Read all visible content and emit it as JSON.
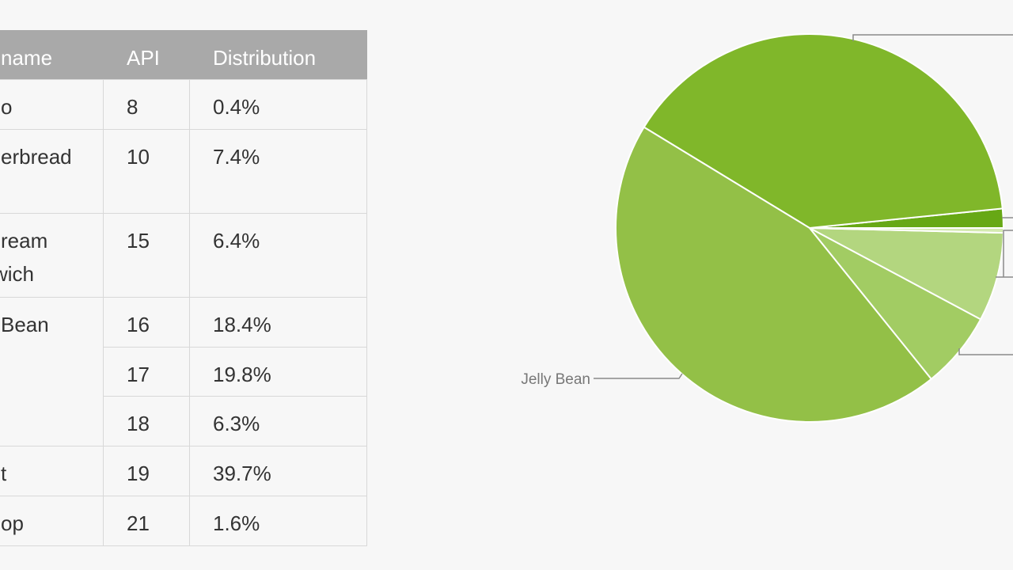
{
  "table": {
    "header": [
      "name",
      "API",
      "Distribution"
    ],
    "rows": [
      [
        "o",
        "8",
        "0.4%"
      ],
      [
        "erbread",
        "10",
        "7.4%"
      ],
      [
        "ream\nwich",
        "15",
        "6.4%"
      ],
      [
        "Bean",
        "16",
        "18.4%"
      ],
      [
        "17",
        "19.8%"
      ],
      [
        "18",
        "6.3%"
      ],
      [
        "t",
        "19",
        "39.7%"
      ],
      [
        "op",
        "21",
        "1.6%"
      ]
    ]
  },
  "chart_data": {
    "type": "pie",
    "categories": [
      null,
      null,
      null,
      "Jelly Bean",
      null,
      null
    ],
    "values": [
      0.4,
      7.4,
      6.4,
      44.5,
      39.7,
      1.6
    ],
    "colors": [
      "#d4eab0",
      "#b3d67f",
      "#a2cc63",
      "#93c047",
      "#80b72a",
      "#67a815"
    ]
  }
}
